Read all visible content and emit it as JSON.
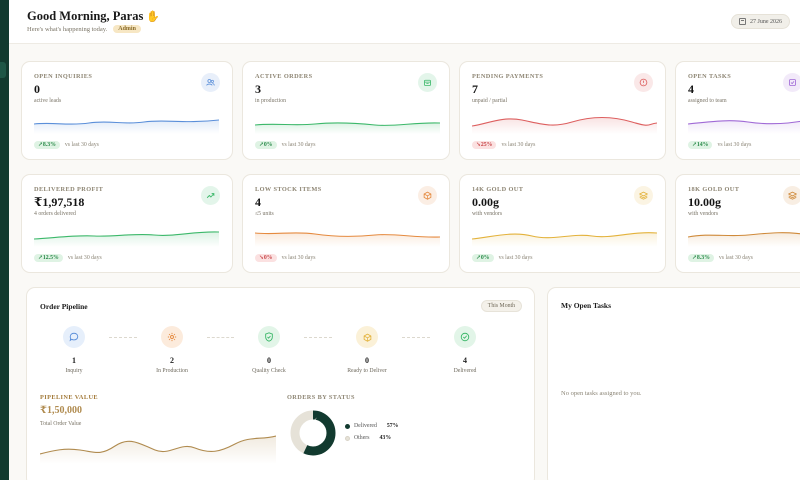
{
  "header": {
    "greeting": "Good Morning, Paras",
    "subtitle": "Here's what's happening today.",
    "role": "Admin",
    "date": "27 June 2026"
  },
  "colors": {
    "sidebar": "#123a2f",
    "gold": "#b08b4f",
    "green": "#2a8a4a",
    "red": "#c8474a"
  },
  "stats_row1": [
    {
      "label": "OPEN INQUIRIES",
      "value": "0",
      "sub": "active leads",
      "trend": "8.3%",
      "trend_dir": "up",
      "compare": "vs last 30 days",
      "icon": "users-icon",
      "color": "#5b8fd9"
    },
    {
      "label": "ACTIVE ORDERS",
      "value": "3",
      "sub": "in production",
      "trend": "0%",
      "trend_dir": "up",
      "compare": "vs last 30 days",
      "icon": "box-icon",
      "color": "#3cb86a"
    },
    {
      "label": "PENDING PAYMENTS",
      "value": "7",
      "sub": "unpaid / partial",
      "trend": "25%",
      "trend_dir": "down",
      "compare": "vs last 30 days",
      "icon": "alert-circle-icon",
      "color": "#dd5f5f"
    },
    {
      "label": "OPEN TASKS",
      "value": "4",
      "sub": "assigned to team",
      "trend": "14%",
      "trend_dir": "up",
      "compare": "vs last 30 days",
      "icon": "task-icon",
      "color": "#a06ad6"
    }
  ],
  "stats_row2": [
    {
      "label": "DELIVERED PROFIT",
      "value": "₹1,97,518",
      "sub": "4 orders delivered",
      "trend": "12.5%",
      "trend_dir": "up",
      "compare": "vs last 30 days",
      "icon": "trending-up-icon",
      "color": "#3cb86a"
    },
    {
      "label": "LOW STOCK ITEMS",
      "value": "4",
      "sub": "≤5 units",
      "trend": "0%",
      "trend_dir": "down",
      "compare": "vs last 30 days",
      "icon": "package-icon",
      "color": "#e58a3f"
    },
    {
      "label": "14K GOLD OUT",
      "value": "0.00g",
      "sub": "with vendors",
      "trend": "0%",
      "trend_dir": "up",
      "compare": "vs last 30 days",
      "icon": "layers-icon",
      "color": "#e3b23b"
    },
    {
      "label": "18K GOLD OUT",
      "value": "10.00g",
      "sub": "with vendors",
      "trend": "8.3%",
      "trend_dir": "up",
      "compare": "vs last 30 days",
      "icon": "layers-icon",
      "color": "#cf8a3a"
    }
  ],
  "pipeline": {
    "title": "Order Pipeline",
    "period": "This Month",
    "stages": [
      {
        "label": "Inquiry",
        "count": "1",
        "icon": "chat-icon",
        "color": "#5b8fd9",
        "bg": "#e6effb"
      },
      {
        "label": "In Production",
        "count": "2",
        "icon": "gear-icon",
        "color": "#e58a3f",
        "bg": "#fcebdc"
      },
      {
        "label": "Quality Check",
        "count": "0",
        "icon": "shield-check-icon",
        "color": "#3cb86a",
        "bg": "#e2f5e8"
      },
      {
        "label": "Ready to Deliver",
        "count": "0",
        "icon": "package-icon",
        "color": "#e3b23b",
        "bg": "#fbf1d8"
      },
      {
        "label": "Delivered",
        "count": "4",
        "icon": "check-circle-icon",
        "color": "#3cb86a",
        "bg": "#e2f5e8"
      }
    ],
    "value_label": "PIPELINE VALUE",
    "value": "₹1,50,000",
    "value_sub": "Total Order Value",
    "status_label": "ORDERS BY STATUS",
    "status": [
      {
        "name": "Delivered",
        "pct": "57%",
        "value": 57,
        "color": "#123a2f"
      },
      {
        "name": "Others",
        "pct": "43%",
        "value": 43,
        "color": "#e6e2d8"
      }
    ]
  },
  "tasks": {
    "title": "My Open Tasks",
    "empty": "No open tasks assigned to you."
  }
}
